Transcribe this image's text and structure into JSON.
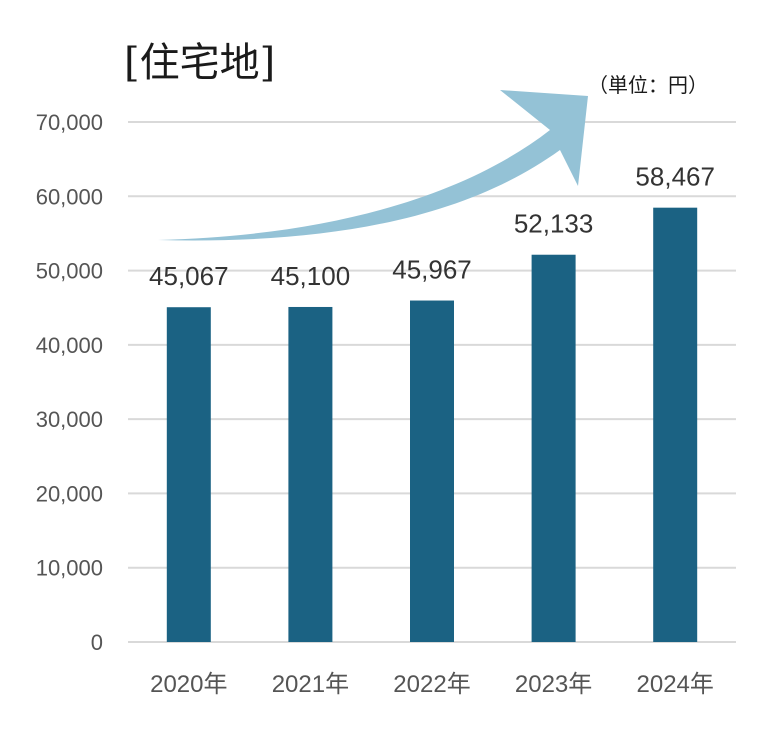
{
  "chart_data": {
    "type": "bar",
    "title": "[住宅地]",
    "unit_label": "（単位：円）",
    "categories": [
      "2020年",
      "2021年",
      "2022年",
      "2023年",
      "2024年"
    ],
    "values": [
      45067,
      45100,
      45967,
      52133,
      58467
    ],
    "data_labels": [
      "45,067",
      "45,100",
      "45,967",
      "52,133",
      "58,467"
    ],
    "ylim": [
      0,
      70000
    ],
    "yticks": [
      0,
      10000,
      20000,
      30000,
      40000,
      50000,
      60000,
      70000
    ],
    "ytick_labels": [
      "0",
      "10,000",
      "20,000",
      "30,000",
      "40,000",
      "50,000",
      "60,000",
      "70,000"
    ],
    "grid": true,
    "colors": {
      "bar": "#1b6283",
      "grid": "#d9d9d9",
      "arrow": "#94c2d6"
    }
  }
}
